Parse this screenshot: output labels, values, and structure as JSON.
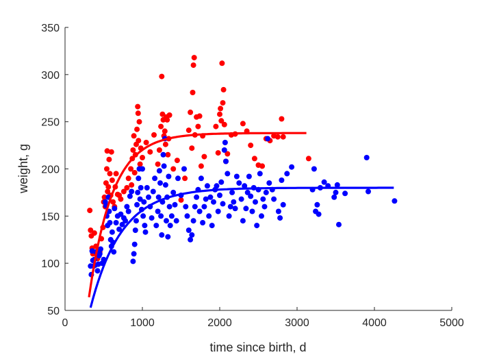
{
  "chart_data": {
    "type": "scatter",
    "xlabel": "time since birth, d",
    "ylabel": "weight, g",
    "xlim": [
      0,
      5000
    ],
    "ylim": [
      50,
      350
    ],
    "xticks": [
      0,
      1000,
      2000,
      3000,
      4000,
      5000
    ],
    "yticks": [
      50,
      100,
      150,
      200,
      250,
      300,
      350
    ],
    "grid": false,
    "series": [
      {
        "color": "#ff0000",
        "points": [
          [
            320,
            156
          ],
          [
            330,
            135
          ],
          [
            340,
            129
          ],
          [
            350,
            116
          ],
          [
            360,
            110
          ],
          [
            380,
            132
          ],
          [
            400,
            118
          ],
          [
            420,
            105
          ],
          [
            450,
            112
          ],
          [
            470,
            126
          ],
          [
            490,
            138
          ],
          [
            500,
            165
          ],
          [
            510,
            170
          ],
          [
            520,
            160
          ],
          [
            530,
            185
          ],
          [
            540,
            200
          ],
          [
            545,
            219
          ],
          [
            550,
            176
          ],
          [
            560,
            181
          ],
          [
            570,
            210
          ],
          [
            580,
            195
          ],
          [
            590,
            172
          ],
          [
            600,
            218
          ],
          [
            610,
            188
          ],
          [
            620,
            165
          ],
          [
            640,
            160
          ],
          [
            650,
            181
          ],
          [
            660,
            195
          ],
          [
            680,
            173
          ],
          [
            700,
            172
          ],
          [
            720,
            168
          ],
          [
            760,
            176
          ],
          [
            800,
            180
          ],
          [
            820,
            190
          ],
          [
            850,
            200
          ],
          [
            860,
            183
          ],
          [
            870,
            211
          ],
          [
            880,
            220
          ],
          [
            890,
            235
          ],
          [
            900,
            196
          ],
          [
            910,
            215
          ],
          [
            920,
            226
          ],
          [
            930,
            242
          ],
          [
            940,
            266
          ],
          [
            945,
            259
          ],
          [
            950,
            230
          ],
          [
            960,
            250
          ],
          [
            970,
            205
          ],
          [
            980,
            222
          ],
          [
            1000,
            212
          ],
          [
            1050,
            228
          ],
          [
            1100,
            218
          ],
          [
            1150,
            236
          ],
          [
            1200,
            205
          ],
          [
            1220,
            220
          ],
          [
            1240,
            245
          ],
          [
            1250,
            298
          ],
          [
            1260,
            258
          ],
          [
            1270,
            252
          ],
          [
            1280,
            235
          ],
          [
            1290,
            240
          ],
          [
            1300,
            226
          ],
          [
            1310,
            255
          ],
          [
            1320,
            252
          ],
          [
            1330,
            215
          ],
          [
            1340,
            232
          ],
          [
            1350,
            257
          ],
          [
            1400,
            200
          ],
          [
            1450,
            209
          ],
          [
            1500,
            167
          ],
          [
            1550,
            190
          ],
          [
            1600,
            241
          ],
          [
            1620,
            260
          ],
          [
            1640,
            222
          ],
          [
            1650,
            281
          ],
          [
            1660,
            310
          ],
          [
            1670,
            318
          ],
          [
            1680,
            236
          ],
          [
            1700,
            255
          ],
          [
            1720,
            245
          ],
          [
            1740,
            256
          ],
          [
            1760,
            203
          ],
          [
            1780,
            235
          ],
          [
            1800,
            213
          ],
          [
            1950,
            245
          ],
          [
            1980,
            217
          ],
          [
            2000,
            258
          ],
          [
            2010,
            264
          ],
          [
            2020,
            251
          ],
          [
            2030,
            312
          ],
          [
            2040,
            270
          ],
          [
            2050,
            284
          ],
          [
            2060,
            247
          ],
          [
            2080,
            208
          ],
          [
            2100,
            216
          ],
          [
            2150,
            236
          ],
          [
            2200,
            237
          ],
          [
            2300,
            248
          ],
          [
            2350,
            240
          ],
          [
            2400,
            225
          ],
          [
            2450,
            211
          ],
          [
            2500,
            204
          ],
          [
            2550,
            203
          ],
          [
            2600,
            232
          ],
          [
            2650,
            230
          ],
          [
            2700,
            235
          ],
          [
            2750,
            234
          ],
          [
            2800,
            253
          ],
          [
            2820,
            234
          ],
          [
            3150,
            211
          ]
        ]
      },
      {
        "color": "#0000ff",
        "points": [
          [
            330,
            97
          ],
          [
            340,
            88
          ],
          [
            350,
            113
          ],
          [
            360,
            103
          ],
          [
            370,
            97
          ],
          [
            380,
            104
          ],
          [
            390,
            98
          ],
          [
            400,
            112
          ],
          [
            420,
            92
          ],
          [
            430,
            99
          ],
          [
            440,
            108
          ],
          [
            450,
            110
          ],
          [
            460,
            115
          ],
          [
            480,
            100
          ],
          [
            500,
            104
          ],
          [
            520,
            165
          ],
          [
            530,
            161
          ],
          [
            540,
            150
          ],
          [
            550,
            140
          ],
          [
            560,
            170
          ],
          [
            570,
            155
          ],
          [
            580,
            143
          ],
          [
            590,
            125
          ],
          [
            600,
            118
          ],
          [
            610,
            133
          ],
          [
            620,
            122
          ],
          [
            630,
            112
          ],
          [
            640,
            158
          ],
          [
            660,
            143
          ],
          [
            680,
            150
          ],
          [
            700,
            136
          ],
          [
            720,
            152
          ],
          [
            740,
            141
          ],
          [
            760,
            148
          ],
          [
            780,
            145
          ],
          [
            800,
            160
          ],
          [
            820,
            155
          ],
          [
            840,
            171
          ],
          [
            860,
            176
          ],
          [
            880,
            102
          ],
          [
            890,
            110
          ],
          [
            900,
            120
          ],
          [
            910,
            135
          ],
          [
            920,
            145
          ],
          [
            930,
            162
          ],
          [
            940,
            175
          ],
          [
            950,
            190
          ],
          [
            960,
            200
          ],
          [
            970,
            168
          ],
          [
            980,
            180
          ],
          [
            990,
            157
          ],
          [
            1000,
            200
          ],
          [
            1010,
            150
          ],
          [
            1020,
            165
          ],
          [
            1030,
            140
          ],
          [
            1040,
            133
          ],
          [
            1060,
            180
          ],
          [
            1080,
            170
          ],
          [
            1100,
            160
          ],
          [
            1120,
            148
          ],
          [
            1140,
            176
          ],
          [
            1160,
            190
          ],
          [
            1180,
            140
          ],
          [
            1200,
            155
          ],
          [
            1210,
            170
          ],
          [
            1220,
            198
          ],
          [
            1230,
            185
          ],
          [
            1240,
            150
          ],
          [
            1250,
            130
          ],
          [
            1260,
            165
          ],
          [
            1270,
            215
          ],
          [
            1280,
            203
          ],
          [
            1290,
            232
          ],
          [
            1300,
            183
          ],
          [
            1310,
            145
          ],
          [
            1320,
            170
          ],
          [
            1330,
            128
          ],
          [
            1340,
            192
          ],
          [
            1350,
            160
          ],
          [
            1360,
            140
          ],
          [
            1380,
            150
          ],
          [
            1400,
            175
          ],
          [
            1420,
            162
          ],
          [
            1440,
            145
          ],
          [
            1460,
            190
          ],
          [
            1500,
            172
          ],
          [
            1540,
            200
          ],
          [
            1560,
            160
          ],
          [
            1580,
            150
          ],
          [
            1600,
            135
          ],
          [
            1620,
            125
          ],
          [
            1640,
            130
          ],
          [
            1660,
            145
          ],
          [
            1680,
            160
          ],
          [
            1700,
            170
          ],
          [
            1720,
            178
          ],
          [
            1740,
            155
          ],
          [
            1760,
            190
          ],
          [
            1780,
            143
          ],
          [
            1800,
            160
          ],
          [
            1820,
            168
          ],
          [
            1840,
            182
          ],
          [
            1860,
            150
          ],
          [
            1880,
            170
          ],
          [
            1900,
            140
          ],
          [
            1920,
            165
          ],
          [
            1940,
            178
          ],
          [
            1960,
            182
          ],
          [
            1980,
            155
          ],
          [
            2000,
            172
          ],
          [
            2020,
            186
          ],
          [
            2040,
            163
          ],
          [
            2060,
            220
          ],
          [
            2070,
            228
          ],
          [
            2080,
            208
          ],
          [
            2100,
            195
          ],
          [
            2120,
            150
          ],
          [
            2140,
            160
          ],
          [
            2160,
            175
          ],
          [
            2180,
            165
          ],
          [
            2200,
            158
          ],
          [
            2220,
            192
          ],
          [
            2250,
            185
          ],
          [
            2280,
            168
          ],
          [
            2300,
            145
          ],
          [
            2320,
            182
          ],
          [
            2340,
            158
          ],
          [
            2360,
            175
          ],
          [
            2380,
            192
          ],
          [
            2400,
            171
          ],
          [
            2420,
            155
          ],
          [
            2440,
            180
          ],
          [
            2460,
            165
          ],
          [
            2480,
            140
          ],
          [
            2500,
            178
          ],
          [
            2520,
            195
          ],
          [
            2540,
            150
          ],
          [
            2560,
            168
          ],
          [
            2580,
            160
          ],
          [
            2600,
            175
          ],
          [
            2620,
            232
          ],
          [
            2640,
            185
          ],
          [
            2680,
            178
          ],
          [
            2700,
            168
          ],
          [
            2760,
            155
          ],
          [
            2780,
            148
          ],
          [
            2800,
            188
          ],
          [
            2820,
            162
          ],
          [
            2870,
            195
          ],
          [
            2930,
            202
          ],
          [
            3200,
            178
          ],
          [
            3220,
            200
          ],
          [
            3240,
            155
          ],
          [
            3260,
            162
          ],
          [
            3280,
            152
          ],
          [
            3300,
            180
          ],
          [
            3350,
            186
          ],
          [
            3400,
            182
          ],
          [
            3480,
            170
          ],
          [
            3500,
            175
          ],
          [
            3520,
            183
          ],
          [
            3540,
            141
          ],
          [
            3620,
            174
          ],
          [
            3900,
            212
          ],
          [
            3920,
            176
          ],
          [
            4260,
            166
          ]
        ]
      }
    ],
    "fit_curves": [
      {
        "color": "#ff0000",
        "x_range": [
          310,
          3120
        ],
        "asymptote": 238,
        "start_value": 64,
        "rate": 0.0033
      },
      {
        "color": "#0000ff",
        "x_range": [
          330,
          4250
        ],
        "asymptote": 180,
        "start_value": 53,
        "rate": 0.0025
      }
    ]
  }
}
